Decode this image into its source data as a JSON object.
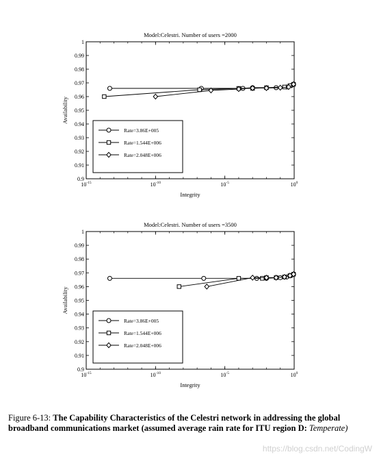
{
  "chart_data": [
    {
      "type": "line",
      "title": "Model:Celestri.  Number of users =2000",
      "xlabel": "Integrity",
      "ylabel": "Availability",
      "xscale": "log",
      "xlim": [
        1e-15,
        1
      ],
      "ylim": [
        0.9,
        1
      ],
      "xticks": [
        {
          "v": 1e-15,
          "base": "10",
          "exp": "-15"
        },
        {
          "v": 1e-10,
          "base": "10",
          "exp": "-10"
        },
        {
          "v": 1e-05,
          "base": "10",
          "exp": "-5"
        },
        {
          "v": 1,
          "base": "10",
          "exp": "0"
        }
      ],
      "yticks": [
        0.9,
        0.91,
        0.92,
        0.93,
        0.94,
        0.95,
        0.96,
        0.97,
        0.98,
        0.99,
        1
      ],
      "ytick_labels": [
        "0.9",
        "0.91",
        "0.92",
        "0.93",
        "0.94",
        "0.95",
        "0.96",
        "0.97",
        "0.98",
        "0.99",
        "1"
      ],
      "legend_position": "bottom-left",
      "series": [
        {
          "name": "Rate=3.86E+005",
          "marker": "circle",
          "x": [
            5e-14,
            2e-07,
            0.0002,
            0.001,
            0.05,
            0.3,
            0.6,
            0.9
          ],
          "y": [
            0.966,
            0.966,
            0.966,
            0.9665,
            0.9665,
            0.967,
            0.968,
            0.969
          ]
        },
        {
          "name": "Rate=1.544E+006",
          "marker": "square",
          "x": [
            2e-14,
            1.5e-07,
            0.0001,
            0.001,
            0.01,
            0.2,
            0.5,
            0.9
          ],
          "y": [
            0.96,
            0.965,
            0.966,
            0.966,
            0.9665,
            0.967,
            0.968,
            0.969
          ]
        },
        {
          "name": "Rate=2.048E+006",
          "marker": "diamond",
          "x": [
            1e-10,
            1e-06,
            0.0001,
            0.001,
            0.01,
            0.1,
            0.4,
            0.9
          ],
          "y": [
            0.96,
            0.9645,
            0.9655,
            0.9662,
            0.9662,
            0.9665,
            0.967,
            0.969
          ]
        }
      ]
    },
    {
      "type": "line",
      "title": "Model:Celestri.  Number of users =3500",
      "xlabel": "Integrity",
      "ylabel": "Availability",
      "xscale": "log",
      "xlim": [
        1e-15,
        1
      ],
      "ylim": [
        0.9,
        1
      ],
      "xticks": [
        {
          "v": 1e-15,
          "base": "10",
          "exp": "-15"
        },
        {
          "v": 1e-10,
          "base": "10",
          "exp": "-10"
        },
        {
          "v": 1e-05,
          "base": "10",
          "exp": "-5"
        },
        {
          "v": 1,
          "base": "10",
          "exp": "0"
        }
      ],
      "yticks": [
        0.9,
        0.91,
        0.92,
        0.93,
        0.94,
        0.95,
        0.96,
        0.97,
        0.98,
        0.99,
        1
      ],
      "ytick_labels": [
        "0.9",
        "0.91",
        "0.92",
        "0.93",
        "0.94",
        "0.95",
        "0.96",
        "0.97",
        "0.98",
        "0.99",
        "1"
      ],
      "legend_position": "bottom-left",
      "series": [
        {
          "name": "Rate=3.86E+005",
          "marker": "circle",
          "x": [
            5e-14,
            3e-07,
            0.002,
            0.01,
            0.1,
            0.3,
            0.6,
            0.9
          ],
          "y": [
            0.966,
            0.966,
            0.966,
            0.966,
            0.9665,
            0.967,
            0.968,
            0.969
          ]
        },
        {
          "name": "Rate=1.544E+006",
          "marker": "square",
          "x": [
            5e-09,
            0.0001,
            0.005,
            0.01,
            0.05,
            0.2,
            0.5,
            0.9
          ],
          "y": [
            0.96,
            0.966,
            0.966,
            0.9665,
            0.9665,
            0.967,
            0.968,
            0.969
          ]
        },
        {
          "name": "Rate=2.048E+006",
          "marker": "diamond",
          "x": [
            5e-07,
            0.001,
            0.01,
            0.05,
            0.2,
            0.5,
            0.9
          ],
          "y": [
            0.96,
            0.9665,
            0.9665,
            0.9665,
            0.967,
            0.968,
            0.969
          ]
        }
      ]
    }
  ],
  "caption": {
    "lead": "Figure 6-13:",
    "body": "The Capability Characteristics of the Celestri network in addressing the global broadband communications market (assumed average rain rate for ITU region D:",
    "tail": "Temperate)"
  },
  "watermark": "https://blog.csdn.net/CodingW"
}
